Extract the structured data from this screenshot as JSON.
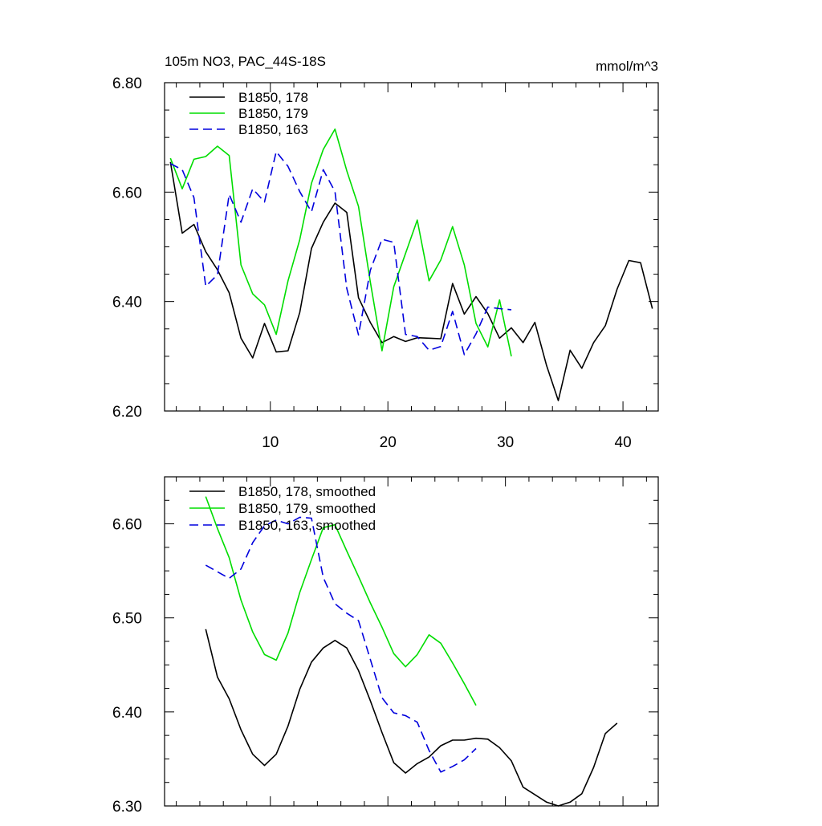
{
  "chart_data": [
    {
      "type": "line",
      "title": "105m NO3, PAC_44S-18S",
      "units": "mmol/m^3",
      "xlim": [
        1,
        43
      ],
      "ylim": [
        6.2,
        6.8
      ],
      "xticks": [
        10,
        20,
        30,
        40
      ],
      "yticks": [
        6.2,
        6.4,
        6.6,
        6.8
      ],
      "ytick_labels": [
        "6.20",
        "6.40",
        "6.60",
        "6.80"
      ],
      "xtick_labels": [
        "10",
        "20",
        "30",
        "40"
      ],
      "series": [
        {
          "name": "B1850, 178",
          "color": "#000000",
          "dash": "solid",
          "x": [
            1.5,
            2.5,
            3.5,
            4.5,
            5.5,
            6.5,
            7.5,
            8.5,
            9.5,
            10.5,
            11.5,
            12.5,
            13.5,
            14.5,
            15.5,
            16.5,
            17.5,
            18.5,
            19.5,
            20.5,
            21.5,
            22.5,
            23.5,
            24.5,
            25.5,
            26.5,
            27.5,
            28.5,
            29.5,
            30.5,
            31.5,
            32.5,
            33.5,
            34.5,
            35.5,
            36.5,
            37.5,
            38.5,
            39.5,
            40.5,
            41.5,
            42.5
          ],
          "y": [
            6.655,
            6.525,
            6.541,
            6.491,
            6.458,
            6.416,
            6.333,
            6.297,
            6.36,
            6.308,
            6.31,
            6.38,
            6.497,
            6.545,
            6.58,
            6.563,
            6.407,
            6.362,
            6.325,
            6.336,
            6.327,
            6.334,
            6.333,
            6.332,
            6.433,
            6.377,
            6.409,
            6.378,
            6.333,
            6.352,
            6.325,
            6.362,
            6.283,
            6.219,
            6.311,
            6.278,
            6.325,
            6.356,
            6.423,
            6.475,
            6.471,
            6.387
          ]
        },
        {
          "name": "B1850, 179",
          "color": "#00dd00",
          "dash": "solid",
          "x": [
            1.5,
            2.5,
            3.5,
            4.5,
            5.5,
            6.5,
            7.5,
            8.5,
            9.5,
            10.5,
            11.5,
            12.5,
            13.5,
            14.5,
            15.5,
            16.5,
            17.5,
            18.5,
            19.5,
            20.5,
            21.5,
            22.5,
            23.5,
            24.5,
            25.5,
            26.5,
            27.5,
            28.5,
            29.5,
            30.5
          ],
          "y": [
            6.662,
            6.606,
            6.66,
            6.665,
            6.684,
            6.667,
            6.467,
            6.414,
            6.394,
            6.34,
            6.438,
            6.513,
            6.616,
            6.678,
            6.715,
            6.639,
            6.574,
            6.436,
            6.31,
            6.427,
            6.488,
            6.549,
            6.438,
            6.476,
            6.537,
            6.467,
            6.36,
            6.317,
            6.403,
            6.3
          ]
        },
        {
          "name": "B1850, 163",
          "color": "#0000dd",
          "dash": "dashed",
          "x": [
            1.5,
            2.5,
            3.5,
            4.5,
            5.5,
            6.5,
            7.5,
            8.5,
            9.5,
            10.5,
            11.5,
            12.5,
            13.5,
            14.5,
            15.5,
            16.5,
            17.5,
            18.5,
            19.5,
            20.5,
            21.5,
            22.5,
            23.5,
            24.5,
            25.5,
            26.5,
            27.5,
            28.5,
            29.5,
            30.5
          ],
          "y": [
            6.652,
            6.641,
            6.59,
            6.428,
            6.449,
            6.596,
            6.545,
            6.606,
            6.582,
            6.674,
            6.647,
            6.601,
            6.564,
            6.641,
            6.601,
            6.424,
            6.339,
            6.457,
            6.514,
            6.508,
            6.34,
            6.336,
            6.311,
            6.318,
            6.382,
            6.303,
            6.341,
            6.39,
            6.387,
            6.385
          ]
        }
      ]
    },
    {
      "type": "line",
      "title": "",
      "xlim": [
        1,
        43
      ],
      "ylim": [
        6.3,
        6.65
      ],
      "xticks": [
        10,
        20,
        30,
        40
      ],
      "yticks": [
        6.3,
        6.4,
        6.5,
        6.6
      ],
      "ytick_labels": [
        "6.30",
        "6.40",
        "6.50",
        "6.60"
      ],
      "series": [
        {
          "name": "B1850, 178, smoothed",
          "color": "#000000",
          "dash": "solid",
          "x": [
            4.5,
            5.5,
            6.5,
            7.5,
            8.5,
            9.5,
            10.5,
            11.5,
            12.5,
            13.5,
            14.5,
            15.5,
            16.5,
            17.5,
            18.5,
            19.5,
            20.5,
            21.5,
            22.5,
            23.5,
            24.5,
            25.5,
            26.5,
            27.5,
            28.5,
            29.5,
            30.5,
            31.5,
            32.5,
            33.5,
            34.5,
            35.5,
            36.5,
            37.5,
            38.5,
            39.5
          ],
          "y": [
            6.488,
            6.437,
            6.414,
            6.381,
            6.355,
            6.343,
            6.355,
            6.385,
            6.424,
            6.453,
            6.468,
            6.476,
            6.468,
            6.444,
            6.412,
            6.378,
            6.346,
            6.335,
            6.345,
            6.352,
            6.364,
            6.37,
            6.37,
            6.372,
            6.371,
            6.362,
            6.348,
            6.32,
            6.312,
            6.304,
            6.3,
            6.304,
            6.313,
            6.341,
            6.377,
            6.388
          ]
        },
        {
          "name": "B1850, 179, smoothed",
          "color": "#00dd00",
          "dash": "solid",
          "x": [
            4.5,
            5.5,
            6.5,
            7.5,
            8.5,
            9.5,
            10.5,
            11.5,
            12.5,
            13.5,
            14.5,
            15.5,
            16.5,
            17.5,
            18.5,
            19.5,
            20.5,
            21.5,
            22.5,
            23.5,
            24.5,
            25.5,
            26.5,
            27.5
          ],
          "y": [
            6.629,
            6.595,
            6.564,
            6.519,
            6.485,
            6.461,
            6.455,
            6.484,
            6.527,
            6.562,
            6.596,
            6.599,
            6.571,
            6.544,
            6.516,
            6.49,
            6.462,
            6.448,
            6.461,
            6.482,
            6.473,
            6.452,
            6.43,
            6.407
          ]
        },
        {
          "name": "B1850, 163, smoothed",
          "color": "#0000dd",
          "dash": "dashed",
          "x": [
            4.5,
            5.5,
            6.5,
            7.5,
            8.5,
            9.5,
            10.5,
            11.5,
            12.5,
            13.5,
            14.5,
            15.5,
            16.5,
            17.5,
            18.5,
            19.5,
            20.5,
            21.5,
            22.5,
            23.5,
            24.5,
            25.5,
            26.5,
            27.5
          ],
          "y": [
            6.556,
            6.549,
            6.542,
            6.552,
            6.58,
            6.598,
            6.604,
            6.6,
            6.607,
            6.606,
            6.543,
            6.515,
            6.505,
            6.497,
            6.456,
            6.415,
            6.399,
            6.396,
            6.389,
            6.359,
            6.336,
            6.342,
            6.349,
            6.361
          ]
        }
      ]
    }
  ]
}
